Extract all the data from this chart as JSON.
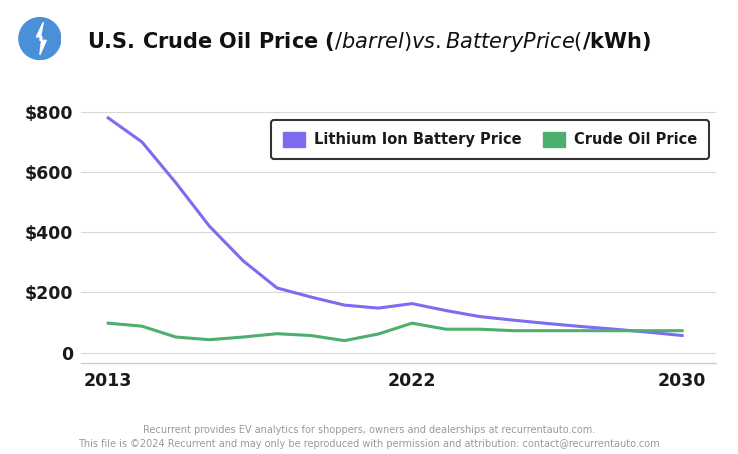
{
  "title": "U.S. Crude Oil Price ($/barrel)vs. Battery Price ($/kWh)",
  "background_color": "#ffffff",
  "plot_bg_color": "#ffffff",
  "battery_color": "#7b6cf0",
  "oil_color": "#4caf6e",
  "battery_label": "Lithium Ion Battery Price",
  "oil_label": "Crude Oil Price",
  "battery_years": [
    2013,
    2014,
    2015,
    2016,
    2017,
    2018,
    2019,
    2020,
    2021,
    2022,
    2023,
    2024,
    2025,
    2026,
    2027,
    2028,
    2029,
    2030
  ],
  "battery_values": [
    780,
    700,
    565,
    420,
    305,
    215,
    185,
    158,
    148,
    163,
    140,
    120,
    108,
    97,
    87,
    78,
    68,
    57
  ],
  "oil_years": [
    2013,
    2014,
    2015,
    2016,
    2017,
    2018,
    2019,
    2020,
    2021,
    2022,
    2023,
    2024,
    2025,
    2026,
    2027,
    2028,
    2029,
    2030
  ],
  "oil_values": [
    98,
    88,
    52,
    43,
    52,
    63,
    57,
    40,
    62,
    98,
    78,
    78,
    73,
    73,
    73,
    73,
    73,
    73
  ],
  "xlim": [
    2012.2,
    2031
  ],
  "ylim": [
    -35,
    870
  ],
  "yticks": [
    0,
    200,
    400,
    600,
    800
  ],
  "ytick_labels": [
    "0",
    "$200",
    "$400",
    "$600",
    "$800"
  ],
  "xtick_labels": [
    "2013",
    "2022",
    "2030"
  ],
  "xtick_positions": [
    2013,
    2022,
    2030
  ],
  "footer_line1": "Recurrent provides EV analytics for shoppers, owners and dealerships at recurrentauto.com.",
  "footer_line2": "This file is ©2024 Recurrent and may only be reproduced with permission and attribution: contact@recurrentauto.com",
  "icon_color": "#4a90d9",
  "icon_bolt_color": "#ffffff",
  "title_fontsize": 15,
  "legend_fontsize": 10.5,
  "tick_fontsize": 12.5,
  "footer_fontsize": 7
}
